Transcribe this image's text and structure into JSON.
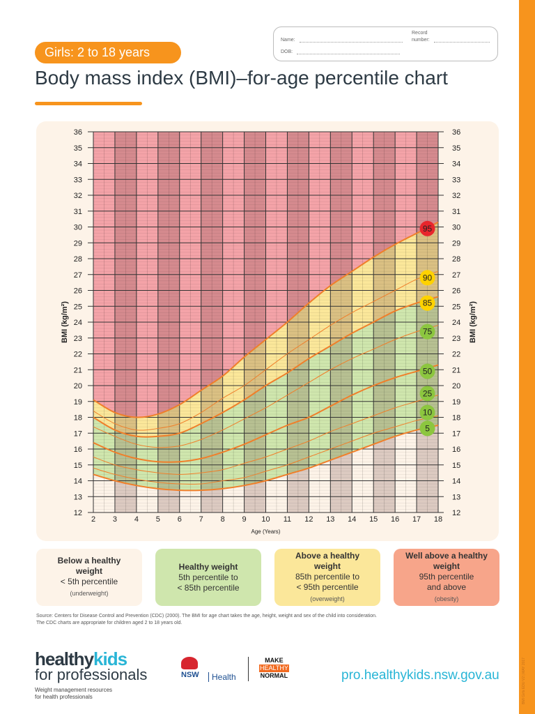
{
  "header": {
    "badge": "Girls: 2 to 18 years",
    "title": "Body mass index (BMI)–for-age percentile chart",
    "form": {
      "name_label": "Name:",
      "dob_label": "DOB:",
      "record_label_1": "Record",
      "record_label_2": "number:"
    }
  },
  "colors": {
    "accent": "#f7941d",
    "above95": "#f4a3a8",
    "p85to95": "#fbe79a",
    "p5to85": "#cfe6ad",
    "below5": "#fdf3e8",
    "curve": "#f07f2a"
  },
  "chart_data": {
    "type": "line",
    "xlabel": "Age (Years)",
    "ylabel": "BMI (kg/m²)",
    "xlim": [
      2,
      18
    ],
    "ylim": [
      12,
      36
    ],
    "x_ticks": [
      2,
      3,
      4,
      5,
      6,
      7,
      8,
      9,
      10,
      11,
      12,
      13,
      14,
      15,
      16,
      17,
      18
    ],
    "y_ticks": [
      12,
      13,
      14,
      15,
      16,
      17,
      18,
      19,
      20,
      21,
      22,
      23,
      24,
      25,
      26,
      27,
      28,
      29,
      30,
      31,
      32,
      33,
      34,
      35,
      36
    ],
    "grid": true,
    "x": [
      2,
      3,
      4,
      5,
      6,
      7,
      8,
      9,
      10,
      11,
      12,
      13,
      14,
      15,
      16,
      17,
      18
    ],
    "series": [
      {
        "name": "5",
        "badge_color": "#8cc63f",
        "values": [
          14.4,
          14.0,
          13.7,
          13.5,
          13.4,
          13.4,
          13.5,
          13.7,
          14.0,
          14.4,
          14.8,
          15.3,
          15.8,
          16.3,
          16.8,
          17.2,
          17.5
        ]
      },
      {
        "name": "10",
        "badge_color": "#8cc63f",
        "values": [
          14.8,
          14.4,
          14.1,
          13.9,
          13.8,
          13.8,
          14.0,
          14.2,
          14.6,
          15.0,
          15.5,
          16.0,
          16.5,
          17.0,
          17.4,
          17.8,
          18.1
        ]
      },
      {
        "name": "25",
        "badge_color": "#8cc63f",
        "values": [
          15.5,
          15.0,
          14.7,
          14.5,
          14.4,
          14.5,
          14.7,
          15.1,
          15.5,
          16.0,
          16.5,
          17.1,
          17.6,
          18.1,
          18.6,
          19.0,
          19.4
        ]
      },
      {
        "name": "50",
        "badge_color": "#8cc63f",
        "values": [
          16.4,
          15.8,
          15.4,
          15.2,
          15.2,
          15.4,
          15.8,
          16.3,
          16.9,
          17.5,
          18.0,
          18.7,
          19.4,
          20.0,
          20.5,
          20.9,
          21.3
        ]
      },
      {
        "name": "75",
        "badge_color": "#8cc63f",
        "values": [
          17.4,
          16.8,
          16.3,
          16.1,
          16.2,
          16.6,
          17.2,
          17.9,
          18.6,
          19.4,
          20.2,
          21.0,
          21.7,
          22.3,
          22.9,
          23.4,
          23.8
        ]
      },
      {
        "name": "85",
        "badge_color": "#ffd200",
        "values": [
          18.0,
          17.2,
          16.8,
          16.8,
          17.0,
          17.6,
          18.3,
          19.1,
          20.0,
          20.8,
          21.7,
          22.5,
          23.3,
          24.0,
          24.7,
          25.2,
          25.6
        ]
      },
      {
        "name": "90",
        "badge_color": "#ffd200",
        "values": [
          18.4,
          17.6,
          17.2,
          17.3,
          17.6,
          18.3,
          19.2,
          20.0,
          21.0,
          22.0,
          22.9,
          23.8,
          24.6,
          25.3,
          26.0,
          26.7,
          27.2
        ]
      },
      {
        "name": "95",
        "badge_color": "#e8262c",
        "values": [
          19.1,
          18.3,
          18.0,
          18.2,
          18.8,
          19.7,
          20.6,
          21.8,
          22.9,
          24.0,
          25.2,
          26.3,
          27.2,
          28.1,
          28.9,
          29.6,
          30.3
        ]
      }
    ]
  },
  "legend": [
    {
      "title": "Below a healthy weight",
      "line1": "< 5th percentile",
      "note": "(underweight)",
      "color": "#fdf3e8"
    },
    {
      "title": "Healthy weight",
      "line1": "5th percentile to",
      "line2": "< 85th percentile",
      "color": "#cfe6ad"
    },
    {
      "title": "Above a healthy weight",
      "line1": "85th percentile to",
      "line2": "< 95th percentile",
      "note": "(overweight)",
      "color": "#fbe79a"
    },
    {
      "title": "Well above a healthy weight",
      "line1": "95th percentile",
      "line2": "and above",
      "note": "(obesity)",
      "color": "#f7a58a"
    }
  ],
  "source": [
    "Source: Centers for Disease Control and Prevention (CDC) (2000). The BMI for age chart takes the age, height, weight and sex of the child into consideration.",
    "The CDC charts are appropriate for children aged 2 to 18 years old."
  ],
  "footer": {
    "logo_a": "healthy",
    "logo_b": "kids",
    "logo_c": "for professionals",
    "logo_tag_1": "Weight management resources",
    "logo_tag_2": "for health professionals",
    "nsw": "NSW",
    "nsw_health": "Health",
    "mhn_1": "MAKE",
    "mhn_2": "HEALTHY",
    "mhn_3": "NORMAL",
    "url": "pro.healthykids.nsw.gov.au",
    "version": "BMI Girls EDU V2 | MAY 2017"
  }
}
